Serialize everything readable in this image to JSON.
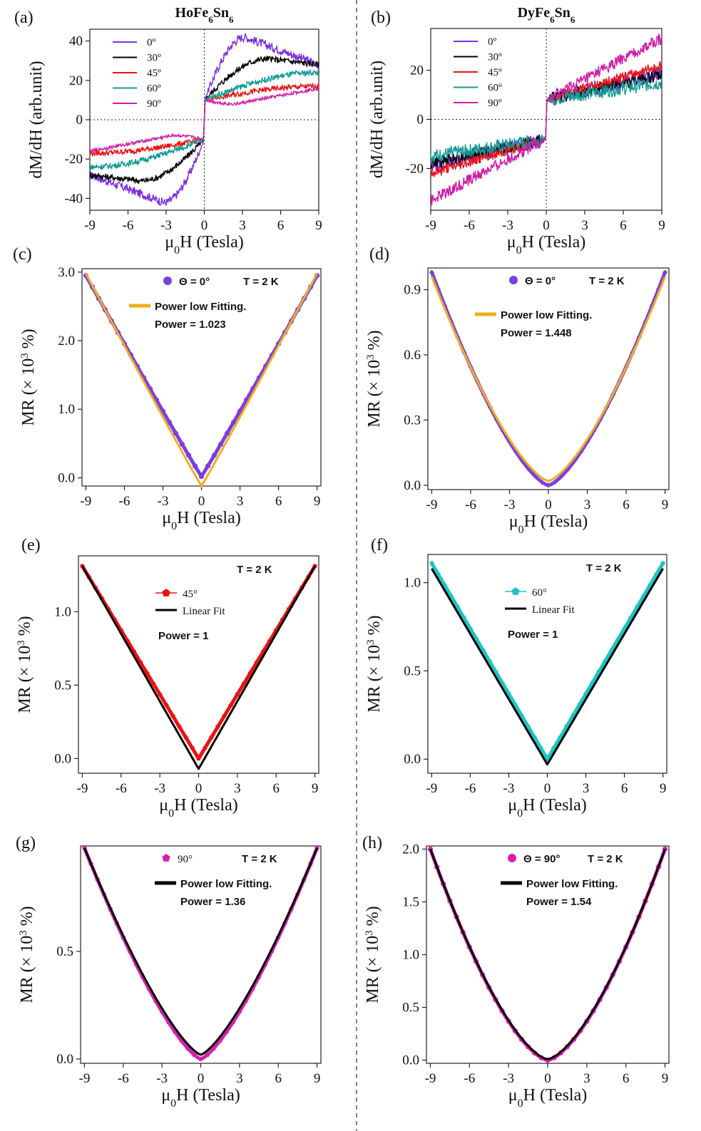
{
  "figure": {
    "divider": "dashed vertical line between columns"
  },
  "chart_data": [
    {
      "id": "a",
      "panel_label": "(a)",
      "type": "line",
      "title": "HoFe6Sn6",
      "title_main": "HoFe",
      "title_sub1": "6",
      "title_mid": "Sn",
      "title_sub2": "6",
      "ylabel": "dM/dH (arb.unit)",
      "xlabel_pre": "μ",
      "xlabel_sub": "0",
      "xlabel_post": "H (Tesla)",
      "xlim": [
        -9,
        9
      ],
      "ylim": [
        -46,
        46
      ],
      "xticks": [
        -9,
        -6,
        -3,
        0,
        3,
        6,
        9
      ],
      "yticks": [
        -40,
        -20,
        0,
        20,
        40
      ],
      "zero_lines": true,
      "series": [
        {
          "name": "0º",
          "color": "#7b2fe0",
          "shape": "dmdh",
          "peak": 42,
          "peak_x": 3.2,
          "end": 28,
          "noise": 2.2
        },
        {
          "name": "30º",
          "color": "#000000",
          "shape": "dmdh",
          "peak": 31,
          "peak_x": 5.0,
          "end": 28,
          "noise": 1.6
        },
        {
          "name": "45º",
          "color": "#ee1111",
          "shape": "dmdh",
          "peak": 17,
          "peak_x": 9.0,
          "end": 15,
          "noise": 1.4
        },
        {
          "name": "60º",
          "color": "#119b95",
          "shape": "dmdh",
          "peak": 24,
          "peak_x": 9.0,
          "end": 24,
          "noise": 1.5
        },
        {
          "name": "90º",
          "color": "#d01aa8",
          "shape": "dmdh",
          "peak": 8,
          "peak_x": 2.5,
          "end": 16,
          "noise": 0.8
        }
      ],
      "legend": {
        "entries": [
          "0º",
          "30º",
          "45º",
          "60º",
          "90º"
        ],
        "position": "top-left"
      }
    },
    {
      "id": "b",
      "panel_label": "(b)",
      "type": "line",
      "title": "DyFe6Sn6",
      "title_main": "DyFe",
      "title_sub1": "6",
      "title_mid": "Sn",
      "title_sub2": "6",
      "ylabel": "dM/dH (arb.unit)",
      "xlabel_pre": "μ",
      "xlabel_sub": "0",
      "xlabel_post": "H (Tesla)",
      "xlim": [
        -9,
        9
      ],
      "ylim": [
        -37,
        37
      ],
      "xticks": [
        -9,
        -6,
        -3,
        0,
        3,
        6,
        9
      ],
      "yticks": [
        -20,
        0,
        20
      ],
      "zero_lines": true,
      "series": [
        {
          "name": "0º",
          "color": "#7b2fe0",
          "shape": "linjump",
          "j": 8,
          "end": 19,
          "noise": 3.0
        },
        {
          "name": "30º",
          "color": "#000000",
          "shape": "linjump",
          "j": 8,
          "end": 18,
          "noise": 2.5
        },
        {
          "name": "45º",
          "color": "#ee1111",
          "shape": "linjump",
          "j": 8,
          "end": 22,
          "noise": 2.0
        },
        {
          "name": "60º",
          "color": "#119b95",
          "shape": "linjump",
          "j": 8,
          "end": 15,
          "noise": 2.8
        },
        {
          "name": "90º",
          "color": "#d01aa8",
          "shape": "linjump",
          "j": 8,
          "end": 33,
          "noise": 2.4
        }
      ],
      "legend": {
        "entries": [
          "0º",
          "30º",
          "45º",
          "60º",
          "90º"
        ],
        "position": "top-left"
      }
    },
    {
      "id": "c",
      "panel_label": "(c)",
      "type": "line",
      "ylabel_pre": "MR (× 10",
      "ylabel_sup": "3",
      "ylabel_post": " %)",
      "xlabel_pre": "μ",
      "xlabel_sub": "0",
      "xlabel_post": "H (Tesla)",
      "xlim": [
        -9.3,
        9.3
      ],
      "ylim": [
        -0.12,
        3.05
      ],
      "xticks": [
        -9,
        -6,
        -3,
        0,
        3,
        6,
        9
      ],
      "yticks": [
        0.0,
        1.0,
        2.0,
        3.0
      ],
      "ytick_labels": [
        "0.0",
        "1.0",
        "2.0",
        "3.0"
      ],
      "data": {
        "name": "Θ = 0°",
        "color": "#7b3fe0",
        "marker": "circle",
        "ymax": 2.95,
        "power": 1.023,
        "offset": 0.02
      },
      "fit": {
        "name": "Power low Fitting.",
        "color": "#f2ae1c",
        "ymax": 2.98,
        "power": 1.023,
        "offset": -0.12
      },
      "annotation": {
        "temperature": "T = 2 K",
        "fit_label": "Power low Fitting.",
        "power_text": "Power = 1.023",
        "data_label": "Θ = 0°"
      }
    },
    {
      "id": "d",
      "panel_label": "(d)",
      "type": "line",
      "ylabel_pre": "MR (× 10",
      "ylabel_sup": "3",
      "ylabel_post": " %)",
      "xlabel_pre": "μ",
      "xlabel_sub": "0",
      "xlabel_post": "H (Tesla)",
      "xlim": [
        -9.3,
        9.3
      ],
      "ylim": [
        -0.02,
        1.0
      ],
      "xticks": [
        -9,
        -6,
        -3,
        0,
        3,
        6,
        9
      ],
      "yticks": [
        0.0,
        0.3,
        0.6,
        0.9
      ],
      "ytick_labels": [
        "0.0",
        "0.3",
        "0.6",
        "0.9"
      ],
      "data": {
        "name": "Θ = 0°",
        "color": "#7b3fe0",
        "marker": "diamond",
        "ymax": 0.98,
        "power": 1.448,
        "offset": 0.0
      },
      "fit": {
        "name": "Power low Fitting.",
        "color": "#f2ae1c",
        "ymax": 0.96,
        "power": 1.448,
        "offset": 0.02
      },
      "annotation": {
        "temperature": "T = 2 K",
        "fit_label": "Power low Fitting.",
        "power_text": "Power = 1.448",
        "data_label": "Θ = 0°"
      }
    },
    {
      "id": "e",
      "panel_label": "(e)",
      "type": "line",
      "ylabel_pre": "MR (× 10",
      "ylabel_sup": "3",
      "ylabel_post": " %)",
      "xlabel_pre": "μ",
      "xlabel_sub": "0",
      "xlabel_post": "H (Tesla)",
      "xlim": [
        -9.3,
        9.3
      ],
      "ylim": [
        -0.1,
        1.38
      ],
      "xticks": [
        -9,
        -6,
        -3,
        0,
        3,
        6,
        9
      ],
      "yticks": [
        0.0,
        0.5,
        1.0
      ],
      "ytick_labels": [
        "0.0",
        "0.5",
        "1.0"
      ],
      "data": {
        "name": "45°",
        "color": "#ee1111",
        "marker": "pentagon",
        "ymax": 1.31,
        "power": 1.0,
        "offset": 0.0
      },
      "fit": {
        "name": "Linear Fit",
        "color": "#000000",
        "ymax": 1.31,
        "power": 1.0,
        "offset": -0.07
      },
      "annotation": {
        "temperature": "T = 2 K",
        "fit_label": "Linear Fit",
        "power_text": "Power = 1",
        "data_label": "45°"
      }
    },
    {
      "id": "f",
      "panel_label": "(f)",
      "type": "line",
      "ylabel_pre": "MR (× 10",
      "ylabel_sup": "3",
      "ylabel_post": " %)",
      "xlabel_pre": "μ",
      "xlabel_sub": "0",
      "xlabel_post": "H (Tesla)",
      "xlim": [
        -9.3,
        9.3
      ],
      "ylim": [
        -0.08,
        1.16
      ],
      "xticks": [
        -9,
        -6,
        -3,
        0,
        3,
        6,
        9
      ],
      "yticks": [
        0.0,
        0.5,
        1.0
      ],
      "ytick_labels": [
        "0.0",
        "0.5",
        "1.0"
      ],
      "data": {
        "name": "60°",
        "color": "#1fc4c4",
        "marker": "pentagon",
        "ymax": 1.11,
        "power": 1.0,
        "offset": 0.0
      },
      "fit": {
        "name": "Linear Fit",
        "color": "#000000",
        "ymax": 1.08,
        "power": 1.0,
        "offset": -0.03
      },
      "annotation": {
        "temperature": "T = 2 K",
        "fit_label": "Linear Fit",
        "power_text": "Power = 1",
        "data_label": "60°"
      }
    },
    {
      "id": "g",
      "panel_label": "(g)",
      "type": "line",
      "ylabel_pre": "MR (× 10",
      "ylabel_sup": "3",
      "ylabel_post": " %)",
      "xlabel_pre": "μ",
      "xlabel_sub": "0",
      "xlabel_post": "H (Tesla)",
      "xlim": [
        -9.3,
        9.3
      ],
      "ylim": [
        -0.02,
        0.99
      ],
      "xticks": [
        -9,
        -6,
        -3,
        0,
        3,
        6,
        9
      ],
      "yticks": [
        0.0,
        0.5
      ],
      "ytick_labels": [
        "0.0",
        "0.5"
      ],
      "data": {
        "name": "90°",
        "color": "#d61fb0",
        "marker": "pentagon",
        "ymax": 0.98,
        "power": 1.36,
        "offset": 0.0
      },
      "fit": {
        "name": "Power low Fitting.",
        "color": "#000000",
        "ymax": 0.98,
        "power": 1.36,
        "offset": 0.02
      },
      "annotation": {
        "temperature": "T = 2 K",
        "fit_label": "Power low Fitting.",
        "power_text": "Power = 1.36",
        "data_label": "90°"
      }
    },
    {
      "id": "h",
      "panel_label": "(h)",
      "type": "line",
      "ylabel_pre": "MR (× 10",
      "ylabel_sup": "3",
      "ylabel_post": " %)",
      "xlabel_pre": "μ",
      "xlabel_sub": "0",
      "xlabel_post": "H (Tesla)",
      "xlim": [
        -9.3,
        9.3
      ],
      "ylim": [
        -0.03,
        2.03
      ],
      "xticks": [
        -9,
        -6,
        -3,
        0,
        3,
        6,
        9
      ],
      "yticks": [
        0.0,
        0.5,
        1.0,
        1.5,
        2.0
      ],
      "ytick_labels": [
        "0.0",
        "0.5",
        "1.0",
        "1.5",
        "2.0"
      ],
      "data": {
        "name": "Θ = 90°",
        "color": "#d61fb0",
        "marker": "circle",
        "ymax": 2.0,
        "power": 1.54,
        "offset": 0.0
      },
      "fit": {
        "name": "Power low Fitting.",
        "color": "#000000",
        "ymax": 2.0,
        "power": 1.54,
        "offset": 0.01
      },
      "annotation": {
        "temperature": "T = 2 K",
        "fit_label": "Power low Fitting.",
        "power_text": "Power = 1.54",
        "data_label": "Θ = 90°"
      }
    }
  ]
}
